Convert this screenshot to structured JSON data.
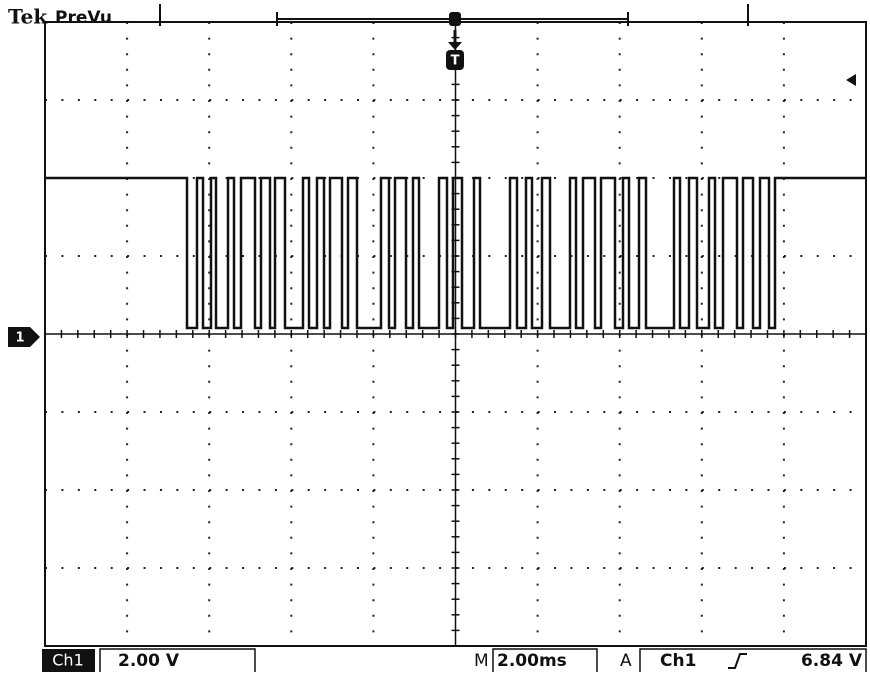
{
  "header": {
    "brand": "Tek",
    "mode": "PreVu"
  },
  "markers": {
    "trigger": "T",
    "ground": "1"
  },
  "footer": {
    "channel": "Ch1",
    "scale": "2.00 V",
    "time_prefix": "M",
    "timebase": "2.00ms",
    "trigger_mode": "A",
    "trigger_source": "Ch1",
    "trigger_level": "6.84 V"
  }
}
